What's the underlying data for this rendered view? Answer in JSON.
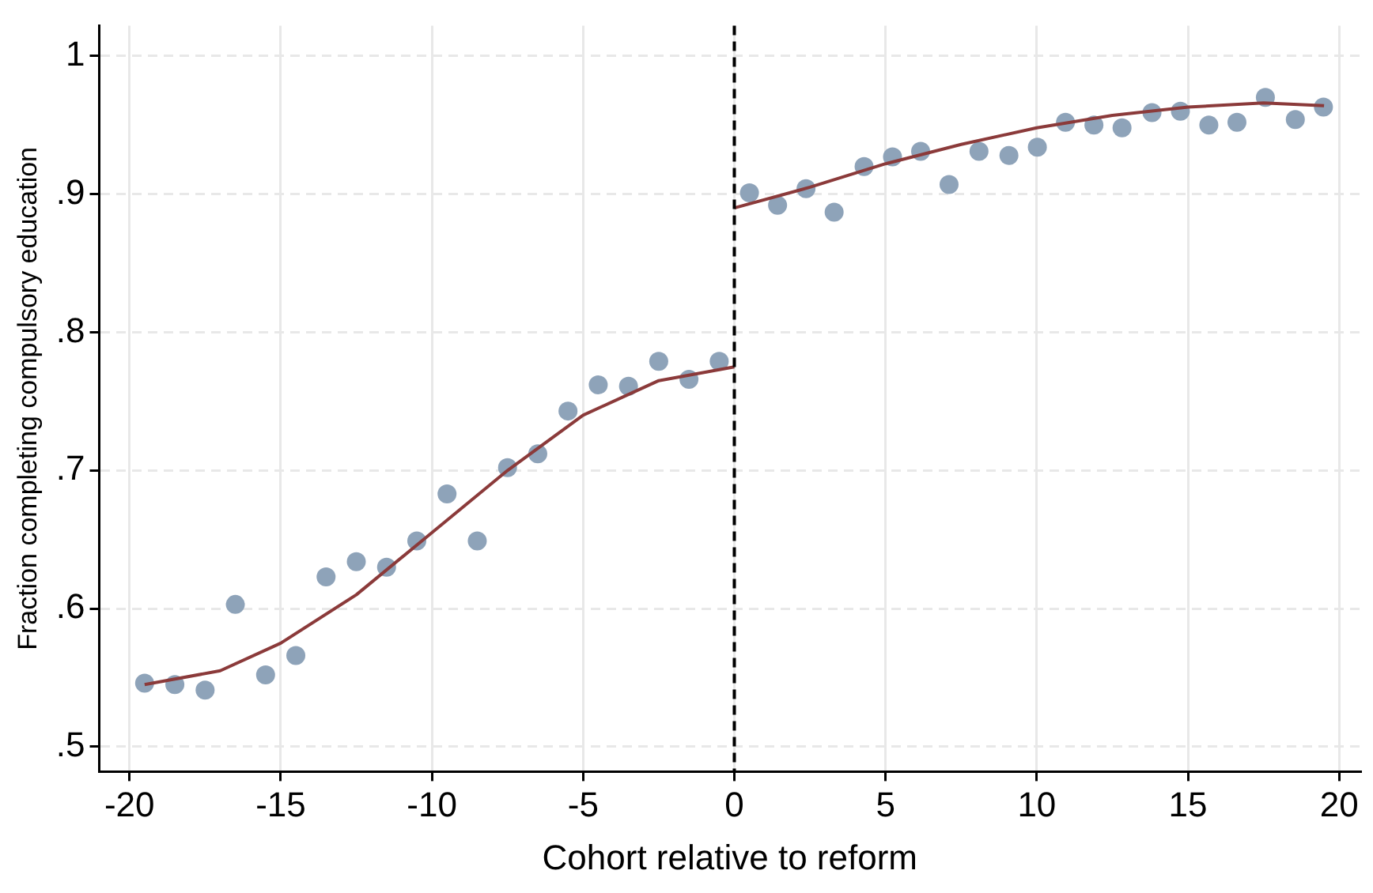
{
  "chart_data": {
    "type": "scatter",
    "xlabel": "Cohort relative to reform",
    "ylabel": "Fraction completing compulsory education",
    "xlim": [
      -21,
      20.7
    ],
    "ylim": [
      0.482,
      1.022
    ],
    "xticks": [
      -20,
      -15,
      -10,
      -5,
      0,
      5,
      10,
      15,
      20
    ],
    "yticks": [
      {
        "value": 0.5,
        "label": ".5"
      },
      {
        "value": 0.6,
        "label": ".6"
      },
      {
        "value": 0.7,
        "label": ".7"
      },
      {
        "value": 0.8,
        "label": ".8"
      },
      {
        "value": 0.9,
        "label": ".9"
      },
      {
        "value": 1,
        "label": "1"
      }
    ],
    "grid": true,
    "legend": false,
    "marker": "circle",
    "ref_lines": [
      {
        "axis": "x",
        "value": 0,
        "color": "#000000",
        "line_style": "dashed"
      }
    ],
    "series": [
      {
        "color": "#8ea3b9",
        "x": [
          -19.5,
          -18.5,
          -17.5,
          -16.5,
          -15.5,
          -14.5,
          -13.5,
          -12.5,
          -11.5,
          -10.5,
          -9.5,
          -8.5,
          -7.5,
          -6.5,
          -5.5,
          -4.5,
          -3.5,
          -2.5,
          -1.5,
          -0.5,
          0.5,
          1.43,
          2.37,
          3.3,
          4.29,
          5.23,
          6.16,
          7.1,
          8.09,
          9.08,
          10.02,
          10.95,
          11.89,
          12.82,
          13.81,
          14.75,
          15.69,
          16.62,
          17.56,
          18.55,
          19.48
        ],
        "values": [
          0.546,
          0.545,
          0.541,
          0.603,
          0.552,
          0.566,
          0.623,
          0.634,
          0.63,
          0.649,
          0.683,
          0.649,
          0.702,
          0.712,
          0.743,
          0.762,
          0.761,
          0.779,
          0.766,
          0.779,
          0.901,
          0.892,
          0.904,
          0.887,
          0.92,
          0.927,
          0.931,
          0.907,
          0.931,
          0.928,
          0.934,
          0.952,
          0.95,
          0.948,
          0.959,
          0.96,
          0.95,
          0.952,
          0.97,
          0.954,
          0.963
        ]
      },
      {
        "type": "line",
        "color": "#8b3a3a",
        "marker": "none",
        "x": [
          -19.5,
          -17,
          -15,
          -12.5,
          -10,
          -7.5,
          -5,
          -2.5,
          0
        ],
        "values": [
          0.545,
          0.555,
          0.575,
          0.61,
          0.655,
          0.7,
          0.74,
          0.765,
          0.775
        ]
      },
      {
        "type": "line",
        "color": "#8b3a3a",
        "marker": "none",
        "x": [
          0,
          2.5,
          5,
          7.5,
          10,
          12.5,
          15,
          17.5,
          19.5
        ],
        "values": [
          0.89,
          0.905,
          0.922,
          0.936,
          0.948,
          0.957,
          0.963,
          0.966,
          0.964
        ]
      }
    ]
  }
}
